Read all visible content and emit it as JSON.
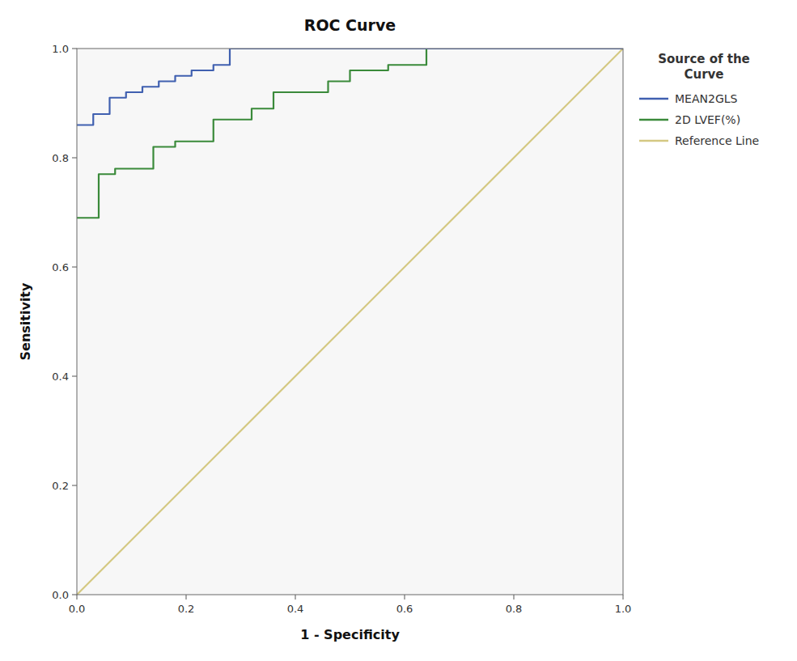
{
  "chart_data": {
    "type": "line",
    "title": "ROC Curve",
    "x_label": "1 - Specificity",
    "y_label": "Sensitivity",
    "legend_title": "Source of the\nCurve",
    "xlim": [
      0.0,
      1.0
    ],
    "ylim": [
      0.0,
      1.0
    ],
    "xticks": [
      {
        "value": 0.0,
        "label": "0.0"
      },
      0.2,
      0.4,
      0.6,
      0.8,
      {
        "value": 1.0,
        "label": "1.0"
      }
    ],
    "yticks": [
      {
        "value": 0.0,
        "label": "0.0"
      },
      0.2,
      0.4,
      0.6,
      0.8,
      {
        "value": 1.0,
        "label": "1.0"
      }
    ],
    "grid": false,
    "legend": "right",
    "series": [
      {
        "name": "MEAN2GLS",
        "color": "#4060b0",
        "x": [
          0.0,
          0.0,
          0.03,
          0.03,
          0.06,
          0.06,
          0.09,
          0.09,
          0.12,
          0.12,
          0.15,
          0.15,
          0.18,
          0.18,
          0.21,
          0.21,
          0.25,
          0.25,
          0.28,
          0.28,
          0.32,
          0.32,
          0.36,
          0.36,
          1.0
        ],
        "values": [
          0.86,
          0.86,
          0.86,
          0.88,
          0.88,
          0.91,
          0.91,
          0.92,
          0.92,
          0.93,
          0.93,
          0.94,
          0.94,
          0.95,
          0.95,
          0.96,
          0.96,
          0.97,
          0.97,
          1.0,
          1.0,
          1.0,
          1.0,
          1.0,
          1.0
        ]
      },
      {
        "name": "2D LVEF(%)",
        "color": "#3a8a3a",
        "x": [
          0.0,
          0.0,
          0.04,
          0.04,
          0.07,
          0.07,
          0.14,
          0.14,
          0.18,
          0.18,
          0.25,
          0.25,
          0.32,
          0.32,
          0.36,
          0.36,
          0.46,
          0.46,
          0.5,
          0.5,
          0.57,
          0.57,
          0.64,
          0.64,
          0.68,
          0.68,
          1.0
        ],
        "values": [
          0.69,
          0.69,
          0.69,
          0.77,
          0.77,
          0.78,
          0.78,
          0.82,
          0.82,
          0.83,
          0.83,
          0.87,
          0.87,
          0.89,
          0.89,
          0.92,
          0.92,
          0.94,
          0.94,
          0.96,
          0.96,
          0.97,
          0.97,
          1.0,
          1.0,
          1.0,
          1.0
        ]
      },
      {
        "name": "Reference Line",
        "color": "#d4c882",
        "x": [
          0,
          1
        ],
        "values": [
          0,
          1
        ]
      }
    ]
  }
}
